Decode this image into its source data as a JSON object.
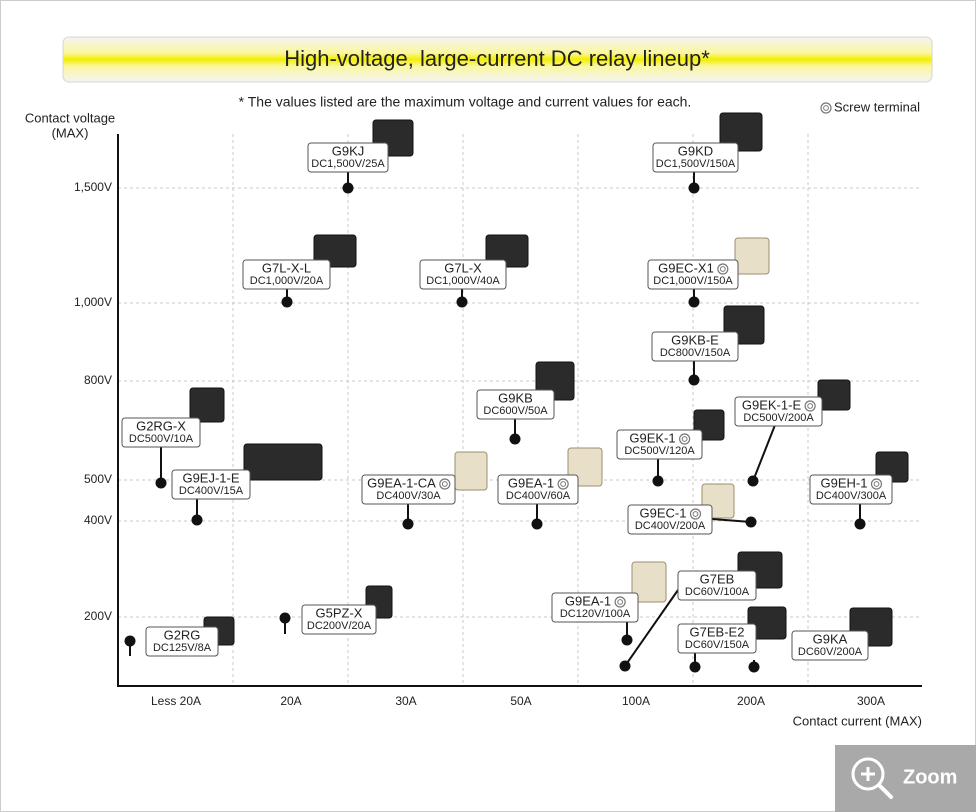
{
  "title": "High-voltage, large-current DC relay lineup*",
  "note": "* The values listed are the maximum voltage and current values for each.",
  "legend": "Screw terminal",
  "y_axis": {
    "label_lines": [
      "Contact voltage",
      "(MAX)"
    ],
    "ticks": [
      "1,500V",
      "1,000V",
      "800V",
      "500V",
      "400V",
      "200V"
    ]
  },
  "x_axis": {
    "label": "Contact current (MAX)",
    "ticks": [
      "Less 20A",
      "20A",
      "30A",
      "50A",
      "100A",
      "200A",
      "300A"
    ]
  },
  "products": [
    {
      "name": "G9KJ",
      "spec": "DC1,500V/25A",
      "screw_terminal": false
    },
    {
      "name": "G9KD",
      "spec": "DC1,500V/150A",
      "screw_terminal": false
    },
    {
      "name": "G7L-X-L",
      "spec": "DC1,000V/20A",
      "screw_terminal": false
    },
    {
      "name": "G7L-X",
      "spec": "DC1,000V/40A",
      "screw_terminal": false
    },
    {
      "name": "G9EC-X1",
      "spec": "DC1,000V/150A",
      "screw_terminal": true
    },
    {
      "name": "G9KB-E",
      "spec": "DC800V/150A",
      "screw_terminal": false
    },
    {
      "name": "G2RG-X",
      "spec": "DC500V/10A",
      "screw_terminal": false
    },
    {
      "name": "G9KB",
      "spec": "DC600V/50A",
      "screw_terminal": false
    },
    {
      "name": "G9EJ-1-E",
      "spec": "DC400V/15A",
      "screw_terminal": false
    },
    {
      "name": "G9EA-1-CA",
      "spec": "DC400V/30A",
      "screw_terminal": true
    },
    {
      "name": "G9EA-1",
      "spec": "DC400V/60A",
      "screw_terminal": true
    },
    {
      "name": "G9EK-1",
      "spec": "DC500V/120A",
      "screw_terminal": true
    },
    {
      "name": "G9EK-1-E",
      "spec": "DC500V/200A",
      "screw_terminal": true
    },
    {
      "name": "G9EC-1",
      "spec": "DC400V/200A",
      "screw_terminal": true
    },
    {
      "name": "G9EH-1",
      "spec": "DC400V/300A",
      "screw_terminal": true
    },
    {
      "name": "G2RG",
      "spec": "DC125V/8A",
      "screw_terminal": false
    },
    {
      "name": "G5PZ-X",
      "spec": "DC200V/20A",
      "screw_terminal": false
    },
    {
      "name": "G9EA-1",
      "spec": "DC120V/100A",
      "screw_terminal": true
    },
    {
      "name": "G7EB",
      "spec": "DC60V/100A",
      "screw_terminal": false
    },
    {
      "name": "G7EB-E2",
      "spec": "DC60V/150A",
      "screw_terminal": false
    },
    {
      "name": "G9KA",
      "spec": "DC60V/200A",
      "screw_terminal": false
    }
  ],
  "zoom": "Zoom"
}
